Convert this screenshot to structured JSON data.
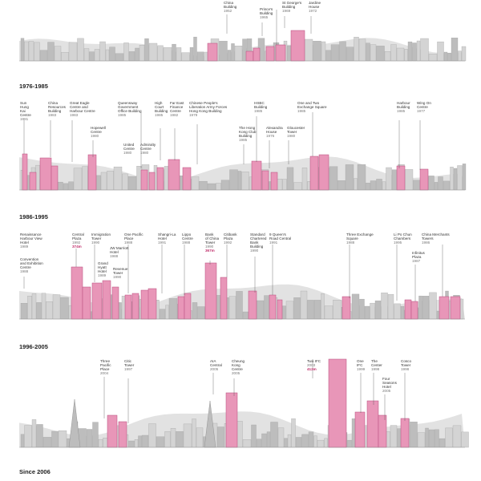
{
  "colors": {
    "highlight": "#e896b8",
    "highlight_stroke": "#b84a7c",
    "building": "#d4d4d4",
    "building_dark": "#bdbdbd",
    "mountain": "#e2e2e2",
    "leader": "#555555"
  },
  "sections": [
    {
      "title": "",
      "labels": [
        {
          "name": "Bank of\nChina\nBuilding",
          "year": "1952"
        },
        {
          "name": "Prince's\nBuilding",
          "year": "1965"
        },
        {
          "name": "St George's\nBuilding",
          "year": "1969"
        },
        {
          "name": "Jardine\nHouse",
          "year": "1972"
        }
      ]
    },
    {
      "title": "1976-1985",
      "labels": [
        {
          "name": "Sun\nHung\nKai\nCentre",
          "year": "1981"
        },
        {
          "name": "China\nResources\nBuilding",
          "year": "1983"
        },
        {
          "name": "Great Eagle\nCentre and\nHarbour Centre",
          "year": "1983"
        },
        {
          "name": "Hopewell\nCentre",
          "year": "1980"
        },
        {
          "name": "Queensway\nGovernment\nOffice Building",
          "year": "1985"
        },
        {
          "name": "United\nCentre",
          "year": "1980"
        },
        {
          "name": "Admiralty\nCentre",
          "year": "1980"
        },
        {
          "name": "High\nCourt\nBuilding",
          "year": "1985"
        },
        {
          "name": "Far East\nFinance\nCentre",
          "year": "1982"
        },
        {
          "name": "Chinese People's\nLiberation Army Forces\nHong Kong Building",
          "year": "1979"
        },
        {
          "name": "HSBC\nBuilding",
          "year": "1985"
        },
        {
          "name": "The Hong\nKong Club\nBuilding",
          "year": "1985"
        },
        {
          "name": "Alexandra\nHouse",
          "year": "1976"
        },
        {
          "name": "Gloucester\nTower",
          "year": "1980"
        },
        {
          "name": "One and Two\nExchange Square",
          "year": "1985"
        },
        {
          "name": "Harbour\nBuilding",
          "year": "1985"
        },
        {
          "name": "Wing On\nCentre",
          "year": "1977"
        }
      ]
    },
    {
      "title": "1986-1995",
      "labels": [
        {
          "name": "Renaissance\nHarbour View\nHotel",
          "year": "1989"
        },
        {
          "name": "Convention\nand Exhibition\nCentre",
          "year": "1988"
        },
        {
          "name": "Central\nPlaza",
          "year": "1992",
          "height": "374m"
        },
        {
          "name": "Immigration\nTower",
          "year": "1990"
        },
        {
          "name": "Grand\nHyatt\nHotel",
          "year": "1989"
        },
        {
          "name": "JW Marriott\nHotel",
          "year": "1988"
        },
        {
          "name": "Revenue\nTower",
          "year": "1990"
        },
        {
          "name": "One Pacific\nPlace",
          "year": "1988"
        },
        {
          "name": "Shangri-La\nHotel",
          "year": "1991"
        },
        {
          "name": "Lippo\nCentre",
          "year": "1988"
        },
        {
          "name": "Bank\nof China\nTower",
          "year": "1990",
          "height": "367m"
        },
        {
          "name": "Citibank\nPlaza",
          "year": "1992"
        },
        {
          "name": "Standard\nChartered\nBank\nBuilding",
          "year": "1990"
        },
        {
          "name": "9 Queen's\nRoad Central",
          "year": "1991"
        },
        {
          "name": "Three Exchange\nSquare",
          "year": "1988"
        },
        {
          "name": "Li Po Chun\nChambers",
          "year": "1995"
        },
        {
          "name": "Infinitus\nPlaza",
          "year": "1987"
        },
        {
          "name": "China Merchants\nTowers",
          "year": "1986"
        }
      ]
    },
    {
      "title": "1996-2005",
      "labels": [
        {
          "name": "Three\nPacific\nPlace",
          "year": "2004"
        },
        {
          "name": "Citic\nTower",
          "year": "1997"
        },
        {
          "name": "AIA\nCentral",
          "year": "2005"
        },
        {
          "name": "Cheung\nKong\nCentre",
          "year": "2005"
        },
        {
          "name": "Two IFC",
          "year": "2003",
          "height": "412m"
        },
        {
          "name": "One\nIFC",
          "year": "1999"
        },
        {
          "name": "The\nCenter",
          "year": "1998"
        },
        {
          "name": "Four\nSeasons\nHotel",
          "year": "2005"
        },
        {
          "name": "Cosco\nTower",
          "year": "1998"
        }
      ]
    },
    {
      "title": "Since 2006",
      "labels": []
    }
  ]
}
